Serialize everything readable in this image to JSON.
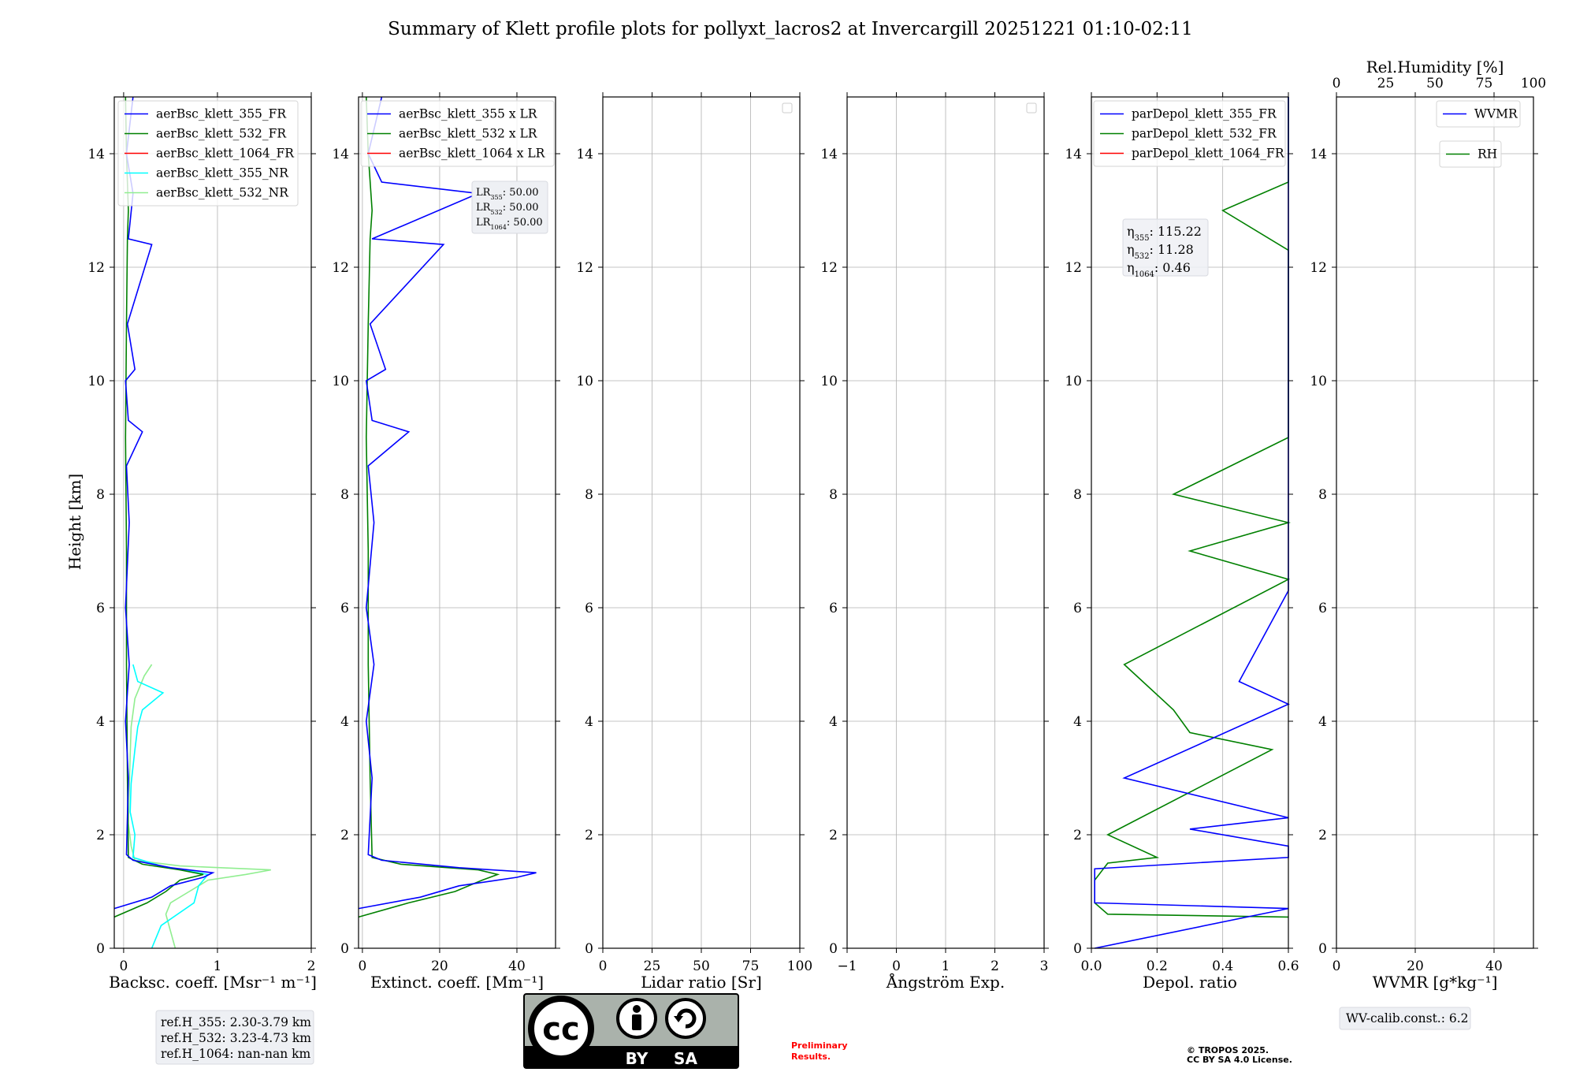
{
  "title": "Summary of Klett profile plots for pollyxt_lacros2 at Invercargill 20251221 01:10-02:11",
  "y_label": "Height [km]",
  "y_ticks": [
    "0",
    "2",
    "4",
    "6",
    "8",
    "10",
    "12",
    "14"
  ],
  "colors": {
    "c355": "#0000ff",
    "c532": "#008000",
    "c1064": "#ff0000",
    "c355nr": "#00ffff",
    "c532nr": "#90ee90",
    "grid": "#b0b0b0"
  },
  "chart_data": [
    {
      "type": "line",
      "name": "backscatter",
      "xlabel": "Backsc. coeff. [Msr⁻¹ m⁻¹]",
      "xlim": [
        -0.1,
        2
      ],
      "ylim": [
        0,
        15
      ],
      "xticks": [
        0,
        1,
        2
      ],
      "xtick_labels": [
        "0",
        "1",
        "2"
      ],
      "legend": [
        {
          "label": "aerBsc_klett_355_FR",
          "color": "#0000ff"
        },
        {
          "label": "aerBsc_klett_532_FR",
          "color": "#008000"
        },
        {
          "label": "aerBsc_klett_1064_FR",
          "color": "#ff0000"
        },
        {
          "label": "aerBsc_klett_355_NR",
          "color": "#00ffff"
        },
        {
          "label": "aerBsc_klett_532_NR",
          "color": "#90ee90"
        }
      ],
      "series": [
        {
          "name": "aerBsc_klett_532_NR",
          "color": "#90ee90",
          "profile": [
            [
              0,
              0.55
            ],
            [
              0.3,
              0.5
            ],
            [
              0.6,
              0.45
            ],
            [
              0.8,
              0.5
            ],
            [
              1.0,
              0.7
            ],
            [
              1.2,
              0.9
            ],
            [
              1.3,
              1.3
            ],
            [
              1.38,
              1.57
            ],
            [
              1.45,
              0.6
            ],
            [
              1.55,
              0.12
            ],
            [
              1.8,
              0.08
            ],
            [
              2.2,
              0.05
            ],
            [
              2.8,
              0.06
            ],
            [
              3.4,
              0.07
            ],
            [
              3.9,
              0.08
            ],
            [
              4.4,
              0.12
            ],
            [
              4.8,
              0.22
            ],
            [
              5.0,
              0.3
            ]
          ]
        },
        {
          "name": "aerBsc_klett_355_NR",
          "color": "#00ffff",
          "profile": [
            [
              0,
              0.3
            ],
            [
              0.4,
              0.4
            ],
            [
              0.8,
              0.75
            ],
            [
              1.1,
              0.8
            ],
            [
              1.3,
              0.9
            ],
            [
              1.45,
              0.4
            ],
            [
              1.6,
              0.1
            ],
            [
              2.0,
              0.12
            ],
            [
              2.4,
              0.07
            ],
            [
              2.9,
              0.08
            ],
            [
              3.5,
              0.12
            ],
            [
              3.9,
              0.15
            ],
            [
              4.2,
              0.2
            ],
            [
              4.5,
              0.42
            ],
            [
              4.7,
              0.15
            ],
            [
              5.0,
              0.1
            ]
          ]
        },
        {
          "name": "aerBsc_klett_532_FR",
          "color": "#008000",
          "profile": [
            [
              0.55,
              -0.1
            ],
            [
              0.8,
              0.25
            ],
            [
              1.0,
              0.45
            ],
            [
              1.2,
              0.6
            ],
            [
              1.3,
              0.85
            ],
            [
              1.38,
              0.6
            ],
            [
              1.48,
              0.2
            ],
            [
              1.6,
              0.05
            ],
            [
              3,
              0.04
            ],
            [
              5,
              0.03
            ],
            [
              7,
              0.03
            ],
            [
              9,
              0.02
            ],
            [
              11,
              0.03
            ],
            [
              12.5,
              0.04
            ],
            [
              13,
              0.05
            ],
            [
              14,
              0.03
            ],
            [
              15,
              0.02
            ]
          ]
        },
        {
          "name": "aerBsc_klett_355_FR",
          "color": "#0000ff",
          "profile": [
            [
              0.7,
              -0.1
            ],
            [
              0.9,
              0.3
            ],
            [
              1.1,
              0.5
            ],
            [
              1.25,
              0.85
            ],
            [
              1.33,
              0.95
            ],
            [
              1.42,
              0.5
            ],
            [
              1.55,
              0.1
            ],
            [
              1.65,
              0.03
            ],
            [
              3,
              0.05
            ],
            [
              4,
              0.02
            ],
            [
              5,
              0.06
            ],
            [
              6,
              0.02
            ],
            [
              7.5,
              0.06
            ],
            [
              8.5,
              0.03
            ],
            [
              9.1,
              0.2
            ],
            [
              9.3,
              0.05
            ],
            [
              10,
              0.02
            ],
            [
              10.2,
              0.12
            ],
            [
              11,
              0.04
            ],
            [
              12.4,
              0.3
            ],
            [
              12.5,
              0.05
            ],
            [
              13.3,
              0.1
            ],
            [
              14,
              0.03
            ],
            [
              15,
              0.1
            ]
          ]
        }
      ],
      "ref_box": [
        "ref.H_355: 2.30-3.79 km",
        "ref.H_532: 3.23-4.73 km",
        "ref.H_1064: nan-nan km"
      ]
    },
    {
      "type": "line",
      "name": "extinction",
      "xlabel": "Extinct. coeff. [Mm⁻¹]",
      "xlim": [
        -1,
        50
      ],
      "ylim": [
        0,
        15
      ],
      "xticks": [
        0,
        20,
        40
      ],
      "xtick_labels": [
        "0",
        "20",
        "40"
      ],
      "legend": [
        {
          "label": "aerBsc_klett_355 x LR",
          "color": "#0000ff"
        },
        {
          "label": "aerBsc_klett_532 x LR",
          "color": "#008000"
        },
        {
          "label": "aerBsc_klett_1064 x LR",
          "color": "#ff0000"
        }
      ],
      "series": [
        {
          "name": "aerBsc_klett_532 x LR",
          "color": "#008000",
          "profile": [
            [
              0.55,
              -1
            ],
            [
              0.8,
              12
            ],
            [
              1.0,
              24
            ],
            [
              1.2,
              31
            ],
            [
              1.3,
              35
            ],
            [
              1.38,
              30
            ],
            [
              1.48,
              10
            ],
            [
              1.6,
              2.5
            ],
            [
              3,
              2
            ],
            [
              5,
              1.5
            ],
            [
              7,
              1.5
            ],
            [
              9,
              1
            ],
            [
              11,
              1.5
            ],
            [
              12.5,
              2
            ],
            [
              13,
              2.5
            ],
            [
              14,
              1.5
            ],
            [
              15,
              1
            ]
          ]
        },
        {
          "name": "aerBsc_klett_355 x LR",
          "color": "#0000ff",
          "profile": [
            [
              0.7,
              -1
            ],
            [
              0.9,
              15
            ],
            [
              1.1,
              25
            ],
            [
              1.25,
              40
            ],
            [
              1.33,
              45
            ],
            [
              1.42,
              25
            ],
            [
              1.55,
              5
            ],
            [
              1.65,
              1.5
            ],
            [
              3,
              2.5
            ],
            [
              4,
              1
            ],
            [
              5,
              3
            ],
            [
              6,
              1
            ],
            [
              7.5,
              3
            ],
            [
              8.5,
              1.5
            ],
            [
              9.1,
              12
            ],
            [
              9.3,
              2.5
            ],
            [
              10,
              1
            ],
            [
              10.2,
              6
            ],
            [
              11,
              2
            ],
            [
              12.4,
              21
            ],
            [
              12.5,
              2.5
            ],
            [
              13.3,
              30
            ],
            [
              13.5,
              5
            ],
            [
              14,
              1.5
            ],
            [
              15,
              5
            ]
          ]
        }
      ],
      "lr_box": [
        {
          "base": "LR",
          "sub": "355",
          "value": ": 50.00"
        },
        {
          "base": "LR",
          "sub": "532",
          "value": ": 50.00"
        },
        {
          "base": "LR",
          "sub": "1064",
          "value": ": 50.00"
        }
      ]
    },
    {
      "type": "line",
      "name": "lidar_ratio",
      "xlabel": "Lidar ratio [Sr]",
      "xlim": [
        0,
        100
      ],
      "ylim": [
        0,
        15
      ],
      "xticks": [
        0,
        25,
        50,
        75,
        100
      ],
      "xtick_labels": [
        "0",
        "25",
        "50",
        "75",
        "100"
      ],
      "series": []
    },
    {
      "type": "line",
      "name": "angstrom",
      "xlabel": "Ångström Exp.",
      "xlim": [
        -1,
        3
      ],
      "ylim": [
        0,
        15
      ],
      "xticks": [
        -1,
        0,
        1,
        2,
        3
      ],
      "xtick_labels": [
        "−1",
        "0",
        "1",
        "2",
        "3"
      ],
      "series": []
    },
    {
      "type": "line",
      "name": "depol",
      "xlabel": "Depol. ratio",
      "xlim": [
        0,
        0.6
      ],
      "ylim": [
        0,
        15
      ],
      "xticks": [
        0,
        0.2,
        0.4,
        0.6
      ],
      "xtick_labels": [
        "0.0",
        "0.2",
        "0.4",
        "0.6"
      ],
      "legend": [
        {
          "label": "parDepol_klett_355_FR",
          "color": "#0000ff"
        },
        {
          "label": "parDepol_klett_532_FR",
          "color": "#008000"
        },
        {
          "label": "parDepol_klett_1064_FR",
          "color": "#ff0000"
        }
      ],
      "series": [
        {
          "name": "parDepol_klett_532_FR",
          "color": "#008000",
          "profile": [
            [
              0.55,
              0.6
            ],
            [
              0.6,
              0.05
            ],
            [
              0.8,
              0.01
            ],
            [
              1.2,
              0.01
            ],
            [
              1.5,
              0.05
            ],
            [
              1.6,
              0.2
            ],
            [
              2,
              0.05
            ],
            [
              3.5,
              0.55
            ],
            [
              3.8,
              0.3
            ],
            [
              4.2,
              0.25
            ],
            [
              5,
              0.1
            ],
            [
              6.5,
              0.6
            ],
            [
              7,
              0.3
            ],
            [
              7.5,
              0.6
            ],
            [
              8,
              0.25
            ],
            [
              9,
              0.6
            ],
            [
              9.3,
              0.6
            ],
            [
              10,
              0.6
            ],
            [
              11.4,
              0.6
            ],
            [
              12.3,
              0.6
            ],
            [
              13,
              0.4
            ],
            [
              13.5,
              0.6
            ],
            [
              14.5,
              0.6
            ],
            [
              15,
              0.6
            ]
          ]
        },
        {
          "name": "parDepol_klett_355_FR",
          "color": "#0000ff",
          "profile": [
            [
              0,
              0.01
            ],
            [
              0.7,
              0.6
            ],
            [
              0.8,
              0.01
            ],
            [
              1.4,
              0.01
            ],
            [
              1.6,
              0.6
            ],
            [
              1.8,
              0.6
            ],
            [
              2.1,
              0.3
            ],
            [
              2.3,
              0.6
            ],
            [
              3,
              0.1
            ],
            [
              4.3,
              0.6
            ],
            [
              4.7,
              0.45
            ],
            [
              6.3,
              0.6
            ],
            [
              7.8,
              0.6
            ],
            [
              8.6,
              0.6
            ],
            [
              9.5,
              0.6
            ],
            [
              10,
              0.6
            ],
            [
              10.3,
              0.6
            ],
            [
              12.5,
              0.6
            ],
            [
              13.5,
              0.6
            ],
            [
              15,
              0.6
            ]
          ]
        }
      ],
      "eta_box": [
        {
          "base": "η",
          "sub": "355",
          "value": ": 115.22"
        },
        {
          "base": "η",
          "sub": "532",
          "value": ": 11.28"
        },
        {
          "base": "η",
          "sub": "1064",
          "value": ": 0.46"
        }
      ]
    },
    {
      "type": "line",
      "name": "wvmr",
      "xlabel": "WVMR [g*kg⁻¹]",
      "xlim": [
        0,
        50
      ],
      "ylim": [
        0,
        15
      ],
      "xticks": [
        0,
        20,
        40
      ],
      "xtick_labels": [
        "0",
        "20",
        "40"
      ],
      "top_axis": {
        "label": "Rel.Humidity [%]",
        "xlim": [
          0,
          100
        ],
        "xticks": [
          0,
          25,
          50,
          75,
          100
        ],
        "xtick_labels": [
          "0",
          "25",
          "50",
          "75",
          "100"
        ]
      },
      "legend": [
        {
          "label": "WVMR",
          "color": "#0000ff"
        }
      ],
      "legend2": [
        {
          "label": "RH",
          "color": "#008000"
        }
      ],
      "series": [],
      "calib_box": "WV-calib.const.: 6.2"
    }
  ],
  "license_badge": {
    "cc": "cc",
    "by": "BY",
    "sa": "SA"
  },
  "preliminary": [
    "Preliminary",
    "Results."
  ],
  "copyright": [
    "© TROPOS 2025.",
    "CC BY SA 4.0 License."
  ]
}
